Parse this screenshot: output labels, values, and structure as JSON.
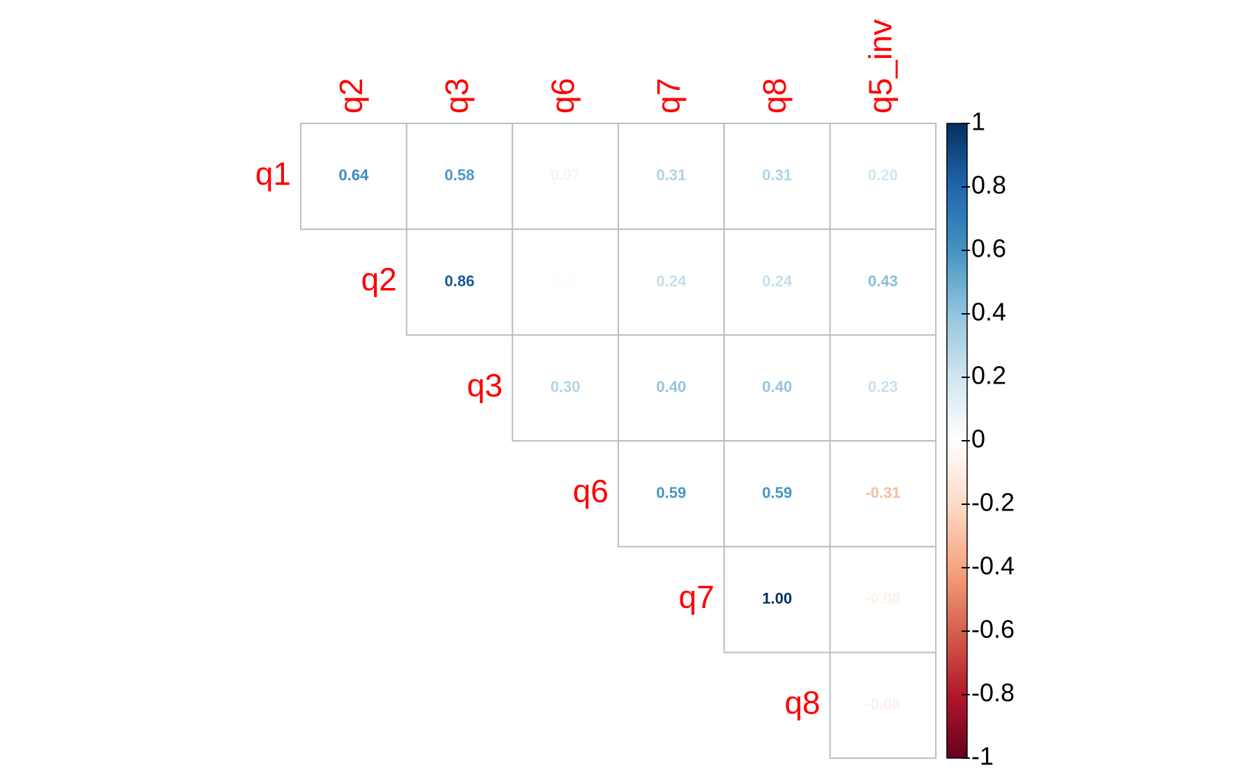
{
  "chart_data": {
    "type": "corrplot",
    "columns": [
      "q2",
      "q3",
      "q6",
      "q7",
      "q8",
      "q5_inv"
    ],
    "rows": [
      "q1",
      "q2",
      "q3",
      "q6",
      "q7",
      "q8"
    ],
    "values": [
      [
        0.64,
        0.58,
        0.07,
        0.31,
        0.31,
        0.2
      ],
      [
        null,
        0.86,
        0.02,
        0.24,
        0.24,
        0.43
      ],
      [
        null,
        null,
        0.3,
        0.4,
        0.4,
        0.23
      ],
      [
        null,
        null,
        null,
        0.59,
        0.59,
        -0.31
      ],
      [
        null,
        null,
        null,
        null,
        1,
        -0.08
      ],
      [
        null,
        null,
        null,
        null,
        null,
        -0.08
      ]
    ],
    "value_labels": [
      [
        "0.64",
        "0.58",
        "0.07",
        "0.31",
        "0.31",
        "0.20"
      ],
      [
        null,
        "0.86",
        "0.02",
        "0.24",
        "0.24",
        "0.43"
      ],
      [
        null,
        null,
        "0.30",
        "0.40",
        "0.40",
        "0.23"
      ],
      [
        null,
        null,
        null,
        "0.59",
        "0.59",
        "-0.31"
      ],
      [
        null,
        null,
        null,
        null,
        "1.00",
        "-0.08"
      ],
      [
        null,
        null,
        null,
        null,
        null,
        "-0.08"
      ]
    ],
    "zlim": [
      -1,
      1
    ],
    "zticks": [
      -1,
      -0.8,
      -0.6,
      -0.4,
      -0.2,
      0,
      0.2,
      0.4,
      0.6,
      0.8,
      1
    ],
    "colorscale": [
      "#67001F",
      "#B2182B",
      "#D6604D",
      "#F4A582",
      "#FDDBC7",
      "#FFFFFF",
      "#D1E5F0",
      "#92C5DE",
      "#4393C3",
      "#2166AC",
      "#053061"
    ],
    "label_color": "#FF0000"
  }
}
